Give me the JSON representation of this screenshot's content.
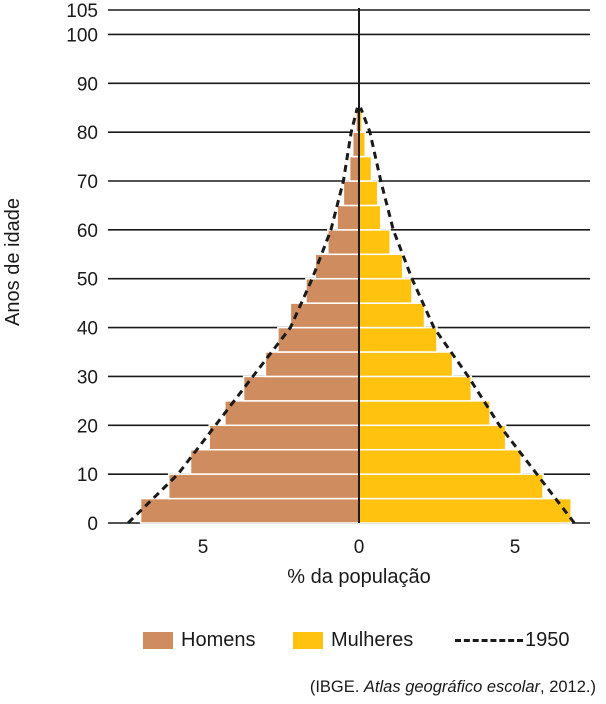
{
  "colors": {
    "men": "#cf8c5f",
    "women": "#ffc20f",
    "axis": "#1a1a1a",
    "bar_divider": "#ffffff"
  },
  "chart_data": {
    "type": "bar",
    "orientation": "horizontal",
    "title": "",
    "xlabel": "% da população",
    "ylabel": "Anos de idade",
    "x_ticks_left": [
      "5",
      "0"
    ],
    "x_ticks_right": [
      "5"
    ],
    "x_tick_values": [
      -5,
      0,
      5
    ],
    "xlim": [
      -7.6,
      7.2
    ],
    "y_ticks": [
      0,
      10,
      20,
      30,
      40,
      50,
      60,
      70,
      80,
      90,
      100,
      105
    ],
    "ylim": [
      0,
      105
    ],
    "grid": "horizontal",
    "age_groups_start": [
      0,
      5,
      10,
      15,
      20,
      25,
      30,
      35,
      40,
      45,
      50,
      55,
      60,
      65,
      70,
      75,
      80
    ],
    "series": [
      {
        "name": "Homens",
        "values": [
          7.0,
          6.1,
          5.4,
          4.8,
          4.3,
          3.7,
          3.0,
          2.6,
          2.2,
          1.7,
          1.4,
          1.0,
          0.7,
          0.5,
          0.3,
          0.2,
          0.1
        ]
      },
      {
        "name": "Mulheres",
        "values": [
          6.8,
          5.9,
          5.2,
          4.7,
          4.2,
          3.6,
          3.0,
          2.5,
          2.1,
          1.7,
          1.4,
          1.0,
          0.7,
          0.6,
          0.4,
          0.2,
          0.1
        ]
      },
      {
        "name": "1950",
        "type": "line",
        "style": "dashed",
        "left": [
          [
            0,
            -7.4
          ],
          [
            10,
            -5.8
          ],
          [
            20,
            -4.6
          ],
          [
            30,
            -3.4
          ],
          [
            40,
            -2.2
          ],
          [
            50,
            -1.5
          ],
          [
            60,
            -0.9
          ],
          [
            70,
            -0.5
          ],
          [
            80,
            -0.25
          ],
          [
            85,
            -0.05
          ]
        ],
        "right": [
          [
            0,
            6.9
          ],
          [
            10,
            5.7
          ],
          [
            20,
            4.5
          ],
          [
            30,
            3.5
          ],
          [
            40,
            2.4
          ],
          [
            50,
            1.7
          ],
          [
            60,
            1.1
          ],
          [
            70,
            0.7
          ],
          [
            80,
            0.35
          ],
          [
            85,
            0.05
          ]
        ]
      }
    ],
    "legend_position": "bottom"
  },
  "legend": {
    "men": "Homens",
    "women": "Mulheres",
    "line": "1950"
  },
  "source": {
    "prefix": "(IBGE. ",
    "italic": "Atlas geográfico escolar",
    "suffix": ", 2012.)"
  }
}
